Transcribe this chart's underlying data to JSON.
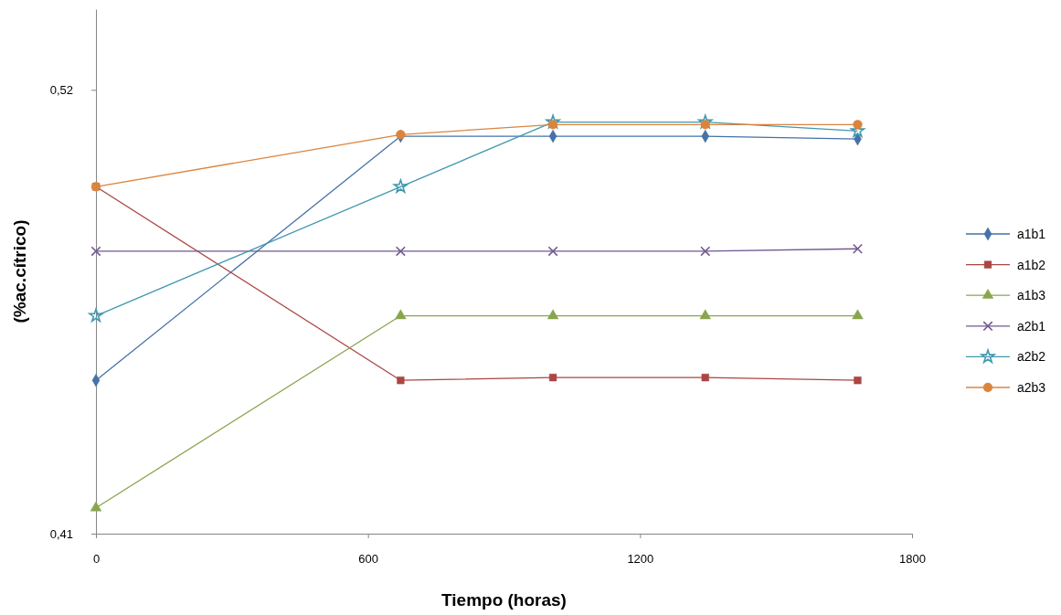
{
  "chart_data": {
    "type": "line",
    "xlabel": "Tiempo (horas)",
    "ylabel": "(%ac.cítrico)",
    "xlim": [
      0,
      1800
    ],
    "xticks": [
      0,
      600,
      1200,
      1800
    ],
    "ylim": [
      0.41,
      0.54
    ],
    "yticks": [
      {
        "value": 0.41,
        "label": "0,41"
      },
      {
        "value": 0.52,
        "label": "0,52"
      }
    ],
    "x": [
      0,
      672,
      1008,
      1344,
      1680
    ],
    "legend": "right",
    "grid": false,
    "series": [
      {
        "name": "a1b1",
        "color": "#4572a7",
        "marker": "diamond",
        "values": [
          0.448,
          0.5085,
          0.5085,
          0.5085,
          0.5078
        ]
      },
      {
        "name": "a1b2",
        "color": "#aa4643",
        "marker": "square",
        "values": [
          0.496,
          0.448,
          0.4487,
          0.4487,
          0.448
        ]
      },
      {
        "name": "a1b3",
        "color": "#89a54e",
        "marker": "triangle",
        "values": [
          0.4164,
          0.464,
          0.464,
          0.464,
          0.464
        ]
      },
      {
        "name": "a2b1",
        "color": "#71588f",
        "marker": "cross",
        "values": [
          0.48,
          0.48,
          0.48,
          0.48,
          0.4806
        ]
      },
      {
        "name": "a2b2",
        "color": "#4198af",
        "marker": "star",
        "values": [
          0.464,
          0.496,
          0.512,
          0.512,
          0.5098
        ]
      },
      {
        "name": "a2b3",
        "color": "#db843d",
        "marker": "circle",
        "values": [
          0.496,
          0.5089,
          0.5114,
          0.5114,
          0.5114
        ]
      }
    ]
  }
}
